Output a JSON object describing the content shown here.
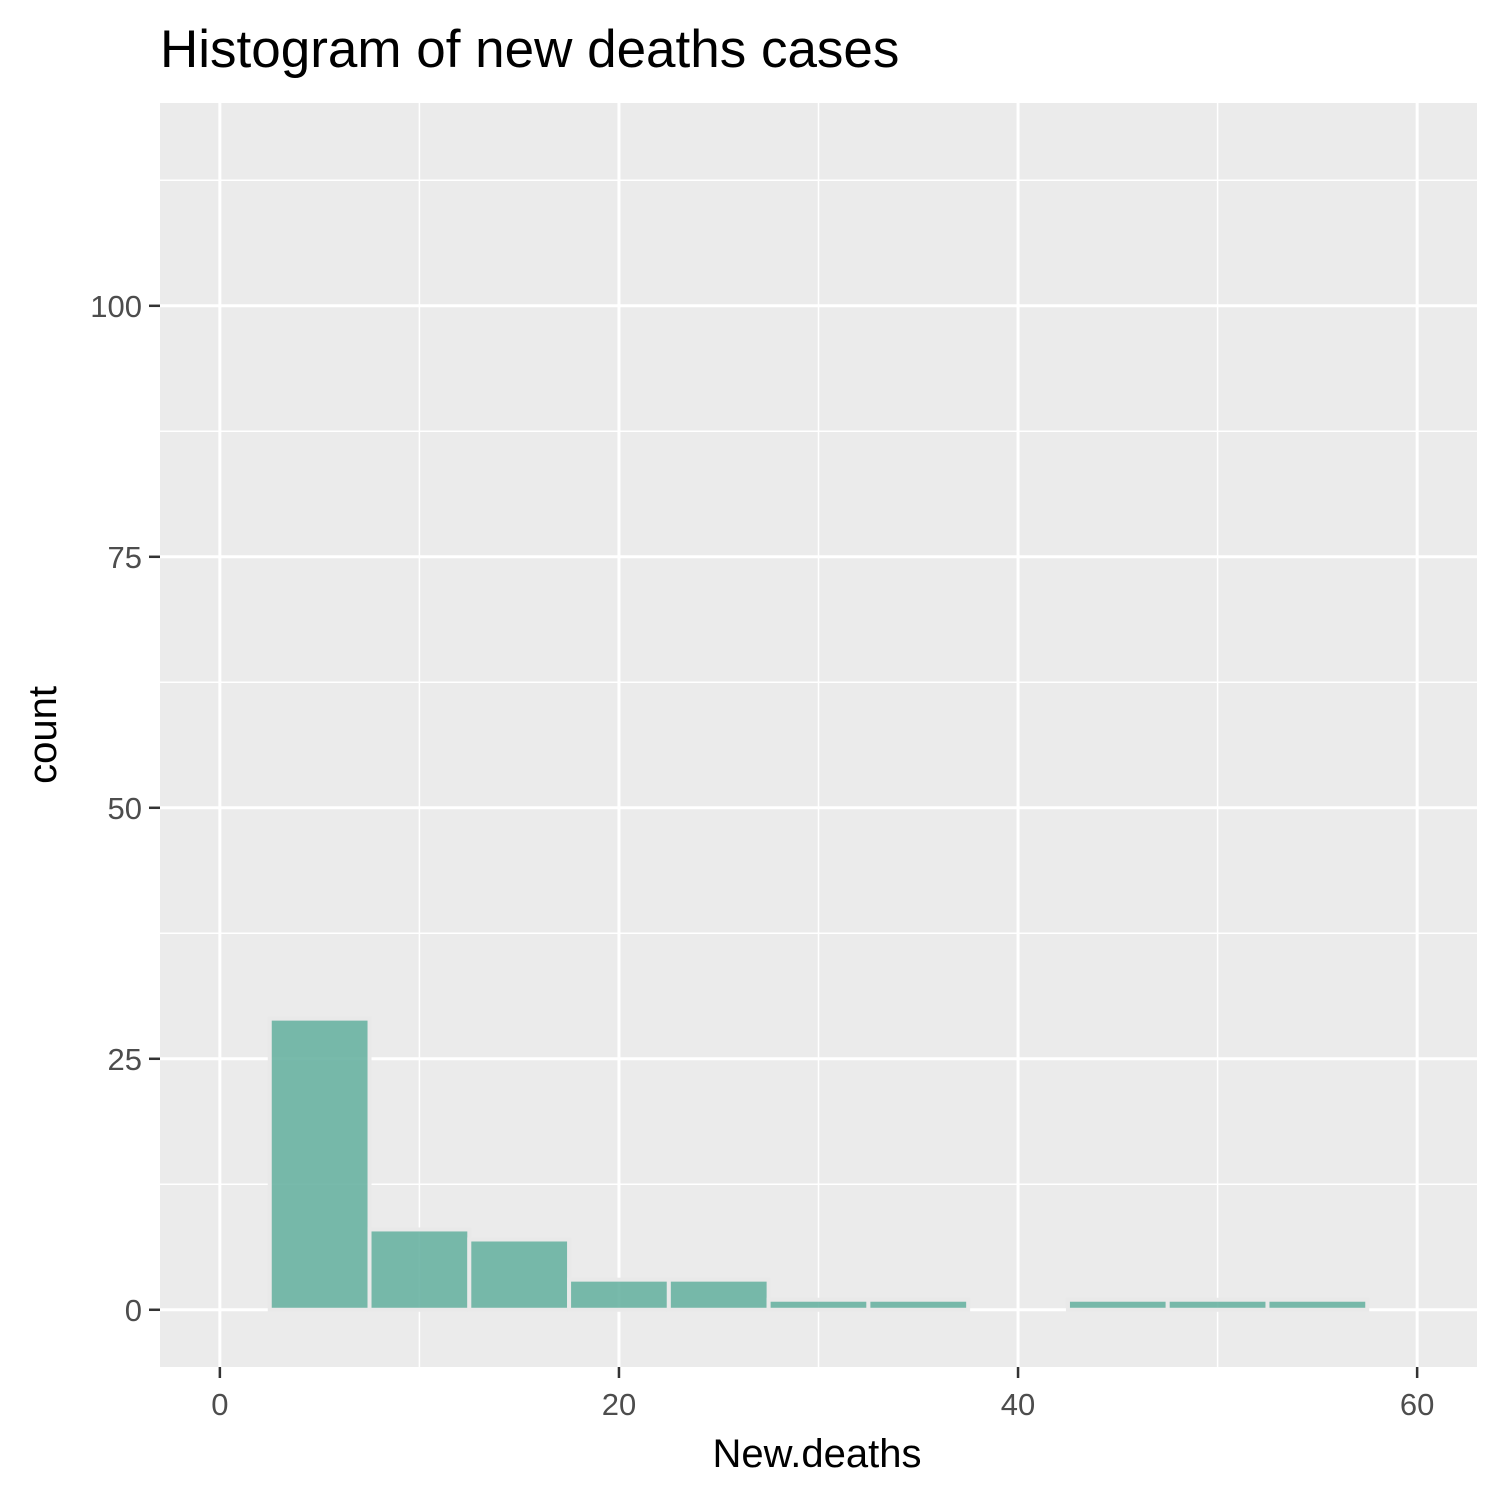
{
  "chart_data": {
    "type": "bar",
    "title": "Histogram of new deaths cases",
    "xlabel": "New.deaths",
    "ylabel": "count",
    "bin_width": 5,
    "bins": [
      {
        "start": 2.5,
        "end": 7.5,
        "count": 29
      },
      {
        "start": 7.5,
        "end": 12.5,
        "count": 8
      },
      {
        "start": 12.5,
        "end": 17.5,
        "count": 7
      },
      {
        "start": 17.5,
        "end": 22.5,
        "count": 3
      },
      {
        "start": 22.5,
        "end": 27.5,
        "count": 3
      },
      {
        "start": 27.5,
        "end": 32.5,
        "count": 1
      },
      {
        "start": 32.5,
        "end": 37.5,
        "count": 1
      },
      {
        "start": 37.5,
        "end": 42.5,
        "count": 0
      },
      {
        "start": 42.5,
        "end": 47.5,
        "count": 1
      },
      {
        "start": 47.5,
        "end": 52.5,
        "count": 1
      },
      {
        "start": 52.5,
        "end": 57.5,
        "count": 1
      }
    ],
    "xlim": [
      -3,
      63
    ],
    "ylim": [
      -5.7,
      120.2
    ],
    "x_ticks": [
      0,
      20,
      40,
      60
    ],
    "x_tick_labels": [
      "0",
      "20",
      "40",
      "60"
    ],
    "y_ticks": [
      0,
      25,
      50,
      75,
      100
    ],
    "y_tick_labels": [
      "0",
      "25",
      "50",
      "75",
      "100"
    ],
    "grid": true,
    "colors": {
      "bar_fill": "#69B3A2",
      "bar_opacity": 0.9,
      "bar_outline": "#E9E9E9",
      "panel_background": "#EBEBEB",
      "grid": "#FFFFFF",
      "tick_text": "#4D4D4D",
      "tick_mark": "#333333"
    }
  }
}
